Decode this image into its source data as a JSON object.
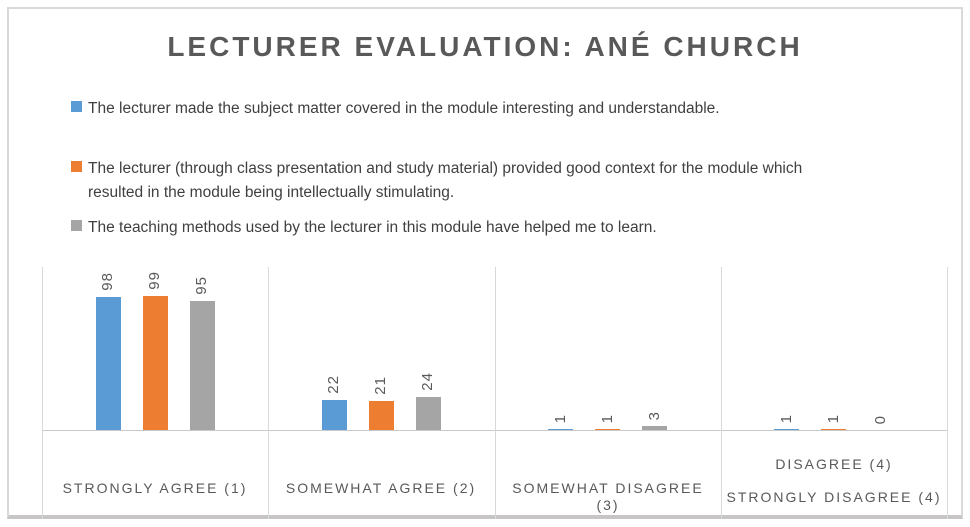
{
  "title": "LECTURER EVALUATION: ANÉ CHURCH",
  "legend": {
    "position": "top-left",
    "entries": [
      {
        "label": "The lecturer made the subject matter covered in the module interesting and understandable.",
        "lines": [
          "The lecturer made the subject matter covered in the module interesting and understandable."
        ],
        "color": "#5B9BD5"
      },
      {
        "label": "The lecturer (through class presentation and study material) provided good context for the module which resulted in the module being intellectually stimulating.",
        "lines": [
          "The lecturer (through class presentation and study material) provided good context for the module which",
          "resulted in the module being intellectually stimulating."
        ],
        "color": "#ED7D31"
      },
      {
        "label": "The teaching methods used by the lecturer in this module have helped me to learn.",
        "lines": [
          "The teaching methods used by the lecturer in this module have helped me to learn."
        ],
        "color": "#A5A5A5"
      }
    ]
  },
  "chart_data": {
    "type": "bar",
    "title": "LECTURER EVALUATION: ANÉ CHURCH",
    "categories": [
      "STRONGLY AGREE (1)",
      "SOMEWHAT AGREE (2)",
      "SOMEWHAT DISAGREE (3)",
      "DISAGREE (4) STRONGLY DISAGREE (4)"
    ],
    "category_label_lines": [
      [
        "STRONGLY AGREE (1)"
      ],
      [
        "SOMEWHAT AGREE (2)"
      ],
      [
        "SOMEWHAT DISAGREE",
        "(3)"
      ],
      [
        "DISAGREE (4)",
        "STRONGLY DISAGREE (4)"
      ]
    ],
    "series": [
      {
        "name": "The lecturer made the subject matter covered in the module interesting and understandable.",
        "color": "#5B9BD5",
        "values": [
          98,
          22,
          1,
          1
        ]
      },
      {
        "name": "The lecturer (through class presentation and study material) provided good context for the module which resulted in the module being intellectually stimulating.",
        "color": "#ED7D31",
        "values": [
          99,
          21,
          1,
          1
        ]
      },
      {
        "name": "The teaching methods used by the lecturer in this module have helped me to learn.",
        "color": "#A5A5A5",
        "values": [
          95,
          24,
          3,
          0
        ]
      }
    ],
    "xlabel": "",
    "ylabel": "",
    "ylim": [
      0,
      120
    ],
    "y_axis_labels_visible": false,
    "data_labels": true,
    "data_label_rotation": 270,
    "gridlines": "vertical-category-separators",
    "legend_position": "top-left"
  },
  "colors": {
    "series_blue": "#5B9BD5",
    "series_orange": "#ED7D31",
    "series_gray": "#A5A5A5",
    "title_text": "#595959",
    "legend_text": "#404040",
    "axis_text": "#595959",
    "gridline": "#D9D9D9",
    "frame_border": "#D9D9D9"
  }
}
